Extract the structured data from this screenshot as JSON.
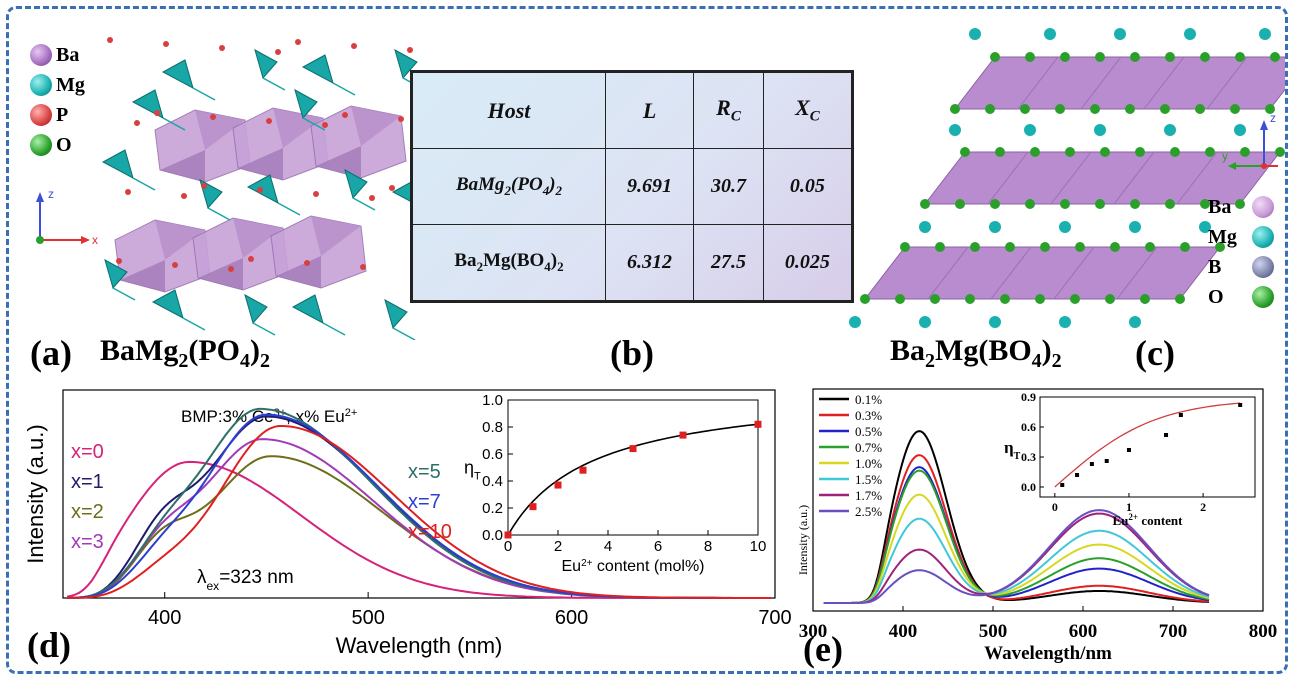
{
  "panel_a": {
    "letter": "(a)",
    "formula_base": "BaMg",
    "formula_sub1": "2",
    "formula_mid": "(PO",
    "formula_sub2": "4",
    "formula_end": ")",
    "formula_sub3": "2",
    "legend": [
      {
        "label": "Ba",
        "color": "#a36dbf"
      },
      {
        "label": "Mg",
        "color": "#1ab0b0"
      },
      {
        "label": "P",
        "color": "#d84040"
      },
      {
        "label": "O",
        "color": "#2aa02a"
      }
    ],
    "axes": {
      "z": "z",
      "x": "x"
    }
  },
  "panel_b": {
    "letter": "(b)",
    "headers": [
      "Host",
      "L",
      "R",
      "X"
    ],
    "header_subs": [
      "",
      "",
      "C",
      "C"
    ],
    "rows": [
      {
        "host_a": "BaMg",
        "host_s1": "2",
        "host_b": "(PO",
        "host_s2": "4",
        "host_c": ")",
        "host_s3": "2",
        "L": "9.691",
        "Rc": "30.7",
        "Xc": "0.05"
      },
      {
        "host_a": "Ba",
        "host_s1": "2",
        "host_b": "Mg(BO",
        "host_s2": "4",
        "host_c": ")",
        "host_s3": "2",
        "L": "6.312",
        "Rc": "27.5",
        "Xc": "0.025"
      }
    ]
  },
  "panel_c": {
    "letter": "(c)",
    "formula_a": "Ba",
    "formula_s1": "2",
    "formula_b": "Mg(BO",
    "formula_s2": "4",
    "formula_c": ")",
    "formula_s3": "2",
    "legend": [
      {
        "label": "Ba",
        "color": "#c79ad6"
      },
      {
        "label": "Mg",
        "color": "#1ab0b0"
      },
      {
        "label": "B",
        "color": "#7a7fa6"
      },
      {
        "label": "O",
        "color": "#2aa02a"
      }
    ],
    "axes": {
      "z": "z",
      "y": "y"
    }
  },
  "chart_data": [
    {
      "id": "d",
      "type": "line",
      "panel_letter": "(d)",
      "title": "BMP:3% Ce",
      "title_sup1": "3+",
      "title_mid": ", x% Eu",
      "title_sup2": "2+",
      "xlabel": "Wavelength (nm)",
      "ylabel": "Intensity (a.u.)",
      "xlim": [
        350,
        700
      ],
      "ylim": [
        0,
        1.1
      ],
      "xticks": [
        400,
        500,
        600,
        700
      ],
      "annotation": "=323 nm",
      "annotation_symbol": "λ",
      "annotation_sub": "ex",
      "series": [
        {
          "name": "x=0",
          "color": "#d6227a",
          "peak": 412,
          "amp": 0.72
        },
        {
          "name": "x=1",
          "color": "#1f1b6e",
          "peak": 450,
          "amp": 0.96
        },
        {
          "name": "x=2",
          "color": "#6e6e1a",
          "peak": 452,
          "amp": 0.75
        },
        {
          "name": "x=3",
          "color": "#a23ab8",
          "peak": 448,
          "amp": 0.84
        },
        {
          "name": "x=5",
          "color": "#2f6f6a",
          "peak": 447,
          "amp": 1.0
        },
        {
          "name": "x=7",
          "color": "#2d3fd1",
          "peak": 450,
          "amp": 0.97
        },
        {
          "name": "x=10",
          "color": "#e02020",
          "peak": 457,
          "amp": 0.91
        }
      ],
      "inset": {
        "type": "line",
        "xlabel_a": "Eu",
        "xlabel_sup": "2+",
        "xlabel_b": " content (mol%)",
        "ylabel": "η",
        "ylabel_sub": "T",
        "xlim": [
          0,
          10
        ],
        "ylim": [
          0,
          1.0
        ],
        "xticks": [
          "0",
          "2",
          "4",
          "6",
          "8",
          "10"
        ],
        "yticks": [
          "0.0",
          "0.2",
          "0.4",
          "0.6",
          "0.8",
          "1.0"
        ],
        "x": [
          0,
          1,
          2,
          3,
          5,
          7,
          10
        ],
        "y": [
          0.0,
          0.21,
          0.37,
          0.48,
          0.64,
          0.74,
          0.82
        ]
      }
    },
    {
      "id": "e",
      "type": "line",
      "panel_letter": "(e)",
      "xlabel": "Wavelength/nm",
      "ylabel": "Intensity (a.u.)",
      "xlim": [
        300,
        800
      ],
      "xticks": [
        300,
        400,
        500,
        600,
        700,
        800
      ],
      "series": [
        {
          "name": "0.1%",
          "color": "#000000",
          "a1": 1.0,
          "a2": 0.07
        },
        {
          "name": "0.3%",
          "color": "#e02020",
          "a1": 0.86,
          "a2": 0.1
        },
        {
          "name": "0.5%",
          "color": "#2222cc",
          "a1": 0.79,
          "a2": 0.2
        },
        {
          "name": "0.7%",
          "color": "#2aa02a",
          "a1": 0.77,
          "a2": 0.26
        },
        {
          "name": "1.0%",
          "color": "#d8d820",
          "a1": 0.63,
          "a2": 0.34
        },
        {
          "name": "1.5%",
          "color": "#40c8d8",
          "a1": 0.49,
          "a2": 0.42
        },
        {
          "name": "1.7%",
          "color": "#a0227a",
          "a1": 0.31,
          "a2": 0.52
        },
        {
          "name": "2.5%",
          "color": "#6a4fc0",
          "a1": 0.19,
          "a2": 0.54
        }
      ],
      "inset": {
        "type": "scatter",
        "xlabel_a": "Eu",
        "xlabel_sup": "2+",
        "xlabel_b": " content",
        "ylabel": "η",
        "ylabel_sub": "T",
        "xlim": [
          -0.2,
          2.7
        ],
        "ylim": [
          -0.1,
          0.9
        ],
        "xticks": [
          "0",
          "1",
          "2"
        ],
        "yticks": [
          "0.0",
          "0.3",
          "0.6",
          "0.9"
        ],
        "x": [
          0.1,
          0.3,
          0.5,
          0.7,
          1.0,
          1.5,
          1.7,
          2.5
        ],
        "y": [
          0.02,
          0.12,
          0.23,
          0.26,
          0.37,
          0.52,
          0.72,
          0.82
        ]
      }
    }
  ]
}
